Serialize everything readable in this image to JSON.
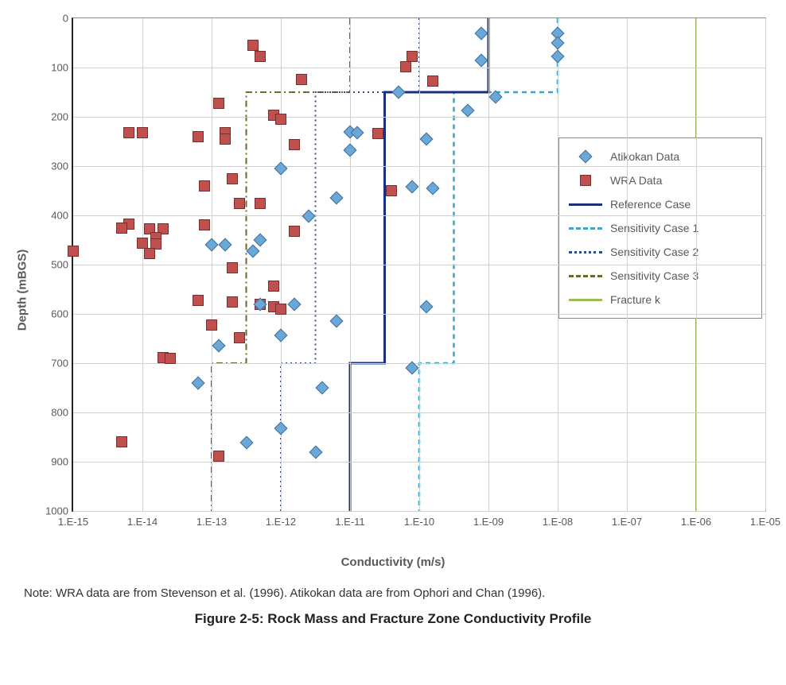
{
  "chart": {
    "type": "scatter+line",
    "background_color": "#ffffff",
    "grid_color": "#d0d0d0",
    "axis_color": "#8a8a8a",
    "x": {
      "label": "Conductivity (m/s)",
      "scale": "log",
      "min_exp": -15,
      "max_exp": -5,
      "tick_exps": [
        -15,
        -14,
        -13,
        -12,
        -11,
        -10,
        -9,
        -8,
        -7,
        -6,
        -5
      ],
      "tick_labels": [
        "1.E-15",
        "1.E-14",
        "1.E-13",
        "1.E-12",
        "1.E-11",
        "1.E-10",
        "1.E-09",
        "1.E-08",
        "1.E-07",
        "1.E-06",
        "1.E-05"
      ],
      "label_fontsize": 15,
      "tick_fontsize": 13
    },
    "y": {
      "label": "Depth (mBGS)",
      "scale": "linear",
      "min": 0,
      "max": 1000,
      "reversed": true,
      "tick_step": 100,
      "ticks": [
        0,
        100,
        200,
        300,
        400,
        500,
        600,
        700,
        800,
        900,
        1000
      ],
      "label_fontsize": 15,
      "tick_fontsize": 13
    },
    "legend": {
      "position": "right-inside",
      "border_color": "#888888",
      "items": [
        {
          "key": "atikokan",
          "label": "Atikokan Data"
        },
        {
          "key": "wra",
          "label": "WRA Data"
        },
        {
          "key": "ref",
          "label": "Reference Case"
        },
        {
          "key": "sens1",
          "label": "Sensitivity Case 1"
        },
        {
          "key": "sens2",
          "label": "Sensitivity Case 2"
        },
        {
          "key": "sens3",
          "label": "Sensitivity Case 3"
        },
        {
          "key": "frac",
          "label": "Fracture k"
        }
      ]
    },
    "series": {
      "atikokan": {
        "type": "scatter",
        "marker": "diamond",
        "marker_size": 10,
        "fill_color": "#6aa8d8",
        "border_color": "#3d6c9e",
        "points_exp_depth": [
          [
            -9.1,
            30
          ],
          [
            -8.0,
            30
          ],
          [
            -8.0,
            50
          ],
          [
            -8.0,
            78
          ],
          [
            -9.1,
            85
          ],
          [
            -10.3,
            150
          ],
          [
            -8.9,
            160
          ],
          [
            -9.3,
            187
          ],
          [
            -11.0,
            230
          ],
          [
            -10.9,
            233
          ],
          [
            -11.0,
            268
          ],
          [
            -12.0,
            305
          ],
          [
            -9.9,
            245
          ],
          [
            -10.1,
            342
          ],
          [
            -9.8,
            345
          ],
          [
            -11.2,
            364
          ],
          [
            -11.6,
            402
          ],
          [
            -12.3,
            450
          ],
          [
            -12.8,
            460
          ],
          [
            -13.0,
            460
          ],
          [
            -12.4,
            472
          ],
          [
            -12.3,
            580
          ],
          [
            -11.8,
            580
          ],
          [
            -9.9,
            585
          ],
          [
            -11.2,
            614
          ],
          [
            -10.1,
            710
          ],
          [
            -12.9,
            665
          ],
          [
            -12.0,
            644
          ],
          [
            -13.2,
            740
          ],
          [
            -11.4,
            750
          ],
          [
            -12.0,
            832
          ],
          [
            -12.5,
            862
          ],
          [
            -11.5,
            880
          ]
        ]
      },
      "wra": {
        "type": "scatter",
        "marker": "square",
        "marker_size": 12,
        "fill_color": "#c0504d",
        "border_color": "#7a2f2d",
        "points_exp_depth": [
          [
            -12.4,
            55
          ],
          [
            -12.3,
            78
          ],
          [
            -10.1,
            77
          ],
          [
            -10.2,
            98
          ],
          [
            -11.7,
            124
          ],
          [
            -9.8,
            128
          ],
          [
            -12.9,
            172
          ],
          [
            -14.2,
            232
          ],
          [
            -14.0,
            232
          ],
          [
            -13.2,
            240
          ],
          [
            -12.8,
            233
          ],
          [
            -12.8,
            245
          ],
          [
            -12.1,
            196
          ],
          [
            -12.0,
            205
          ],
          [
            -11.8,
            256
          ],
          [
            -10.6,
            234
          ],
          [
            -12.7,
            326
          ],
          [
            -13.1,
            340
          ],
          [
            -12.3,
            376
          ],
          [
            -15.0,
            473
          ],
          [
            -14.2,
            418
          ],
          [
            -14.3,
            426
          ],
          [
            -13.9,
            427
          ],
          [
            -13.7,
            427
          ],
          [
            -13.8,
            445
          ],
          [
            -13.8,
            458
          ],
          [
            -14.0,
            457
          ],
          [
            -13.9,
            477
          ],
          [
            -13.1,
            420
          ],
          [
            -12.6,
            376
          ],
          [
            -11.8,
            432
          ],
          [
            -10.4,
            350
          ],
          [
            -12.7,
            506
          ],
          [
            -12.1,
            543
          ],
          [
            -13.2,
            573
          ],
          [
            -12.7,
            576
          ],
          [
            -12.3,
            580
          ],
          [
            -12.1,
            586
          ],
          [
            -12.0,
            590
          ],
          [
            -12.6,
            648
          ],
          [
            -13.7,
            688
          ],
          [
            -13.6,
            690
          ],
          [
            -13.0,
            623
          ],
          [
            -14.3,
            860
          ],
          [
            -12.9,
            888
          ]
        ]
      },
      "ref": {
        "type": "step-line",
        "color": "#1b2e7a",
        "width": 3,
        "dash": "solid",
        "segments_exp_depth": [
          [
            -9.0,
            0
          ],
          [
            -9.0,
            150
          ],
          [
            -10.5,
            150
          ],
          [
            -10.5,
            700
          ],
          [
            -11.0,
            700
          ],
          [
            -11.0,
            1000
          ]
        ]
      },
      "sens1": {
        "type": "step-line",
        "color": "#3aa6c9",
        "width": 2.5,
        "dash": "6,5",
        "segments_exp_depth": [
          [
            -8.0,
            0
          ],
          [
            -8.0,
            150
          ],
          [
            -9.5,
            150
          ],
          [
            -9.5,
            700
          ],
          [
            -10.0,
            700
          ],
          [
            -10.0,
            1000
          ]
        ]
      },
      "sens2": {
        "type": "step-line",
        "color": "#304b8c",
        "width": 2,
        "dash": "2,4",
        "segments_exp_depth": [
          [
            -10.0,
            0
          ],
          [
            -10.0,
            150
          ],
          [
            -11.5,
            150
          ],
          [
            -11.5,
            700
          ],
          [
            -12.0,
            700
          ],
          [
            -12.0,
            1000
          ]
        ]
      },
      "sens3": {
        "type": "step-line",
        "color": "#6b6b2a",
        "width": 2,
        "dash": "8,4,2,4",
        "segments_exp_depth": [
          [
            -11.0,
            0
          ],
          [
            -11.0,
            150
          ],
          [
            -12.5,
            150
          ],
          [
            -12.5,
            700
          ],
          [
            -13.0,
            700
          ],
          [
            -13.0,
            1000
          ]
        ]
      },
      "frac": {
        "type": "line",
        "color": "#9bbb59",
        "width": 2,
        "dash": "solid",
        "segments_exp_depth": [
          [
            -6.0,
            0
          ],
          [
            -6.0,
            1000
          ]
        ]
      }
    }
  },
  "note": "Note:  WRA data are from Stevenson et al. (1996).  Atikokan data are from Ophori and Chan (1996).",
  "caption": "Figure 2-5: Rock Mass and Fracture Zone Conductivity Profile"
}
